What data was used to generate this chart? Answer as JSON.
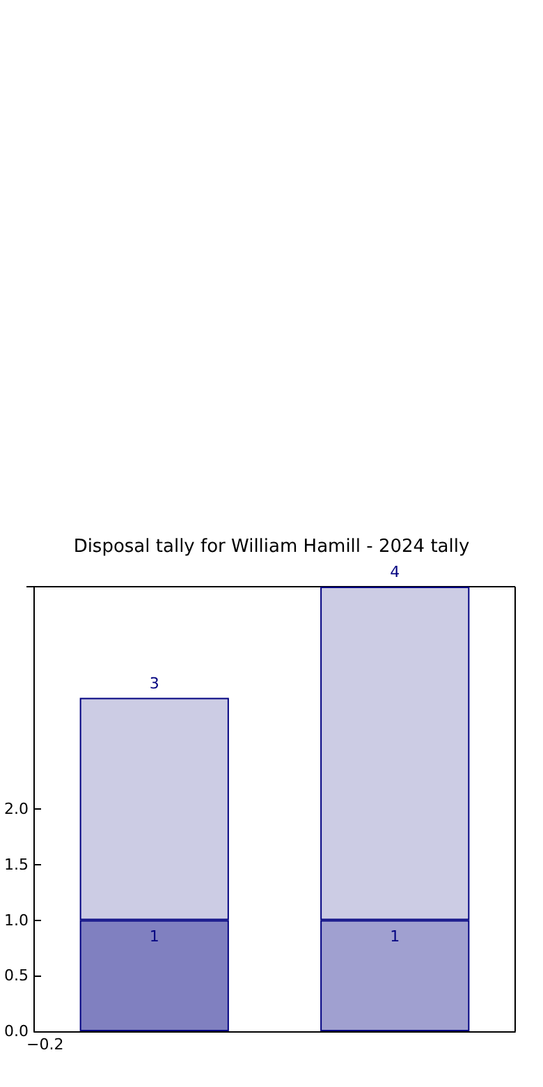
{
  "chart_data": {
    "type": "bar",
    "title": "Disposal tally for William Hamill - 2024 tally",
    "stacked": true,
    "categories": [
      null,
      null
    ],
    "series": [
      {
        "colors": [
          "#8080c0",
          "#a0a0d0"
        ],
        "values": [
          1,
          1
        ],
        "value_labels": [
          "1",
          "1"
        ]
      },
      {
        "color": "#cccce4",
        "values": [
          2,
          3
        ]
      }
    ],
    "totals": [
      "3",
      "4"
    ],
    "annotations": [
      "−0.2"
    ],
    "ylim": [
      0,
      4
    ],
    "yticks": [
      {
        "value": 0,
        "label": "0.0"
      },
      {
        "value": 0.5,
        "label": "0.5"
      },
      {
        "value": 1,
        "label": "1.0"
      },
      {
        "value": 1.5,
        "label": "1.5"
      },
      {
        "value": 2,
        "label": "2.0"
      }
    ]
  }
}
